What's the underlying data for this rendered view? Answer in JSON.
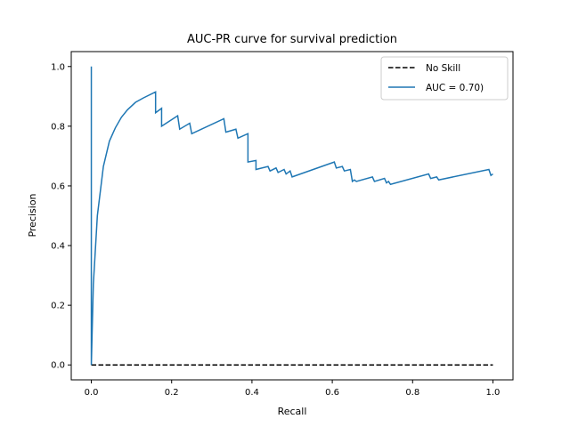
{
  "chart_data": {
    "type": "line",
    "title": "AUC-PR curve for survival prediction",
    "xlabel": "Recall",
    "ylabel": "Precision",
    "xlim": [
      -0.05,
      1.05
    ],
    "ylim": [
      -0.05,
      1.05
    ],
    "xticks": [
      0.0,
      0.2,
      0.4,
      0.6,
      0.8,
      1.0
    ],
    "yticks": [
      0.0,
      0.2,
      0.4,
      0.6,
      0.8,
      1.0
    ],
    "xtick_labels": [
      "0.0",
      "0.2",
      "0.4",
      "0.6",
      "0.8",
      "1.0"
    ],
    "ytick_labels": [
      "0.0",
      "0.2",
      "0.4",
      "0.6",
      "0.8",
      "1.0"
    ],
    "grid": false,
    "legend_position": "top-right",
    "series": [
      {
        "name": "No Skill",
        "style": "dashed",
        "color": "#000000",
        "x": [
          0.0,
          1.0
        ],
        "y": [
          0.0,
          0.0
        ]
      },
      {
        "name": "AUC = 0.70)",
        "style": "solid",
        "color": "#1f77b4",
        "x": [
          0.0,
          0.0,
          0.0,
          0.005,
          0.015,
          0.03,
          0.045,
          0.06,
          0.075,
          0.09,
          0.11,
          0.13,
          0.16,
          0.16,
          0.175,
          0.175,
          0.215,
          0.22,
          0.245,
          0.25,
          0.33,
          0.335,
          0.36,
          0.365,
          0.39,
          0.39,
          0.41,
          0.41,
          0.44,
          0.445,
          0.46,
          0.465,
          0.48,
          0.485,
          0.495,
          0.5,
          0.605,
          0.61,
          0.625,
          0.63,
          0.645,
          0.65,
          0.655,
          0.66,
          0.7,
          0.705,
          0.73,
          0.735,
          0.74,
          0.745,
          0.84,
          0.845,
          0.86,
          0.865,
          0.99,
          0.995,
          1.0
        ],
        "y": [
          0.0,
          1.0,
          0.0,
          0.27,
          0.5,
          0.665,
          0.75,
          0.795,
          0.83,
          0.855,
          0.88,
          0.895,
          0.915,
          0.845,
          0.86,
          0.8,
          0.835,
          0.79,
          0.81,
          0.775,
          0.825,
          0.78,
          0.79,
          0.76,
          0.775,
          0.68,
          0.685,
          0.655,
          0.665,
          0.65,
          0.66,
          0.645,
          0.655,
          0.64,
          0.65,
          0.63,
          0.68,
          0.66,
          0.665,
          0.65,
          0.655,
          0.615,
          0.62,
          0.615,
          0.63,
          0.615,
          0.625,
          0.61,
          0.615,
          0.605,
          0.64,
          0.625,
          0.63,
          0.62,
          0.655,
          0.635,
          0.64
        ]
      }
    ]
  }
}
